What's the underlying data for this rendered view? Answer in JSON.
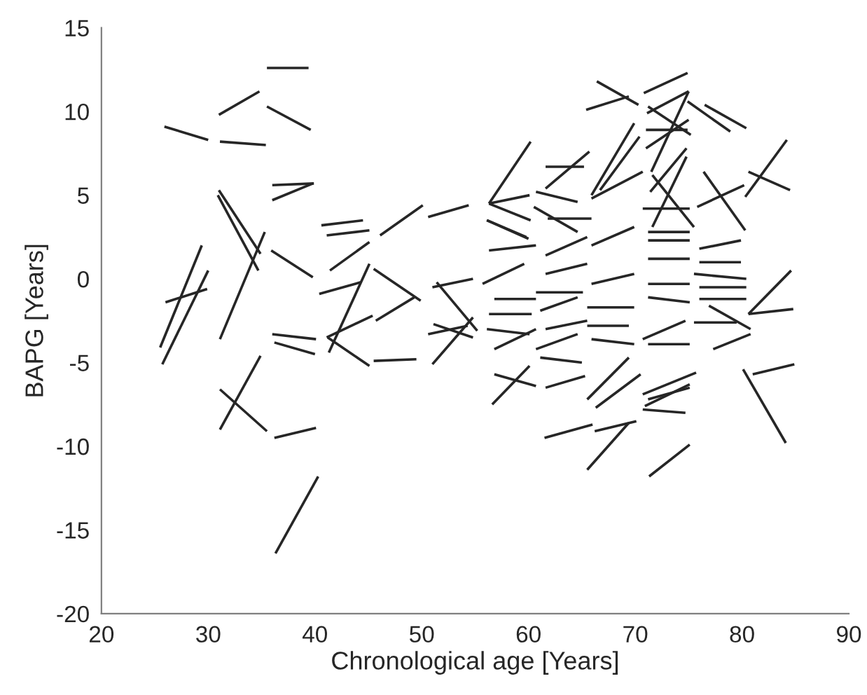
{
  "chart_data": {
    "type": "line",
    "xlabel": "Chronological age [Years]",
    "ylabel": "BAPG [Years]",
    "xlim": [
      20,
      90
    ],
    "xticks": [
      20,
      30,
      40,
      50,
      60,
      70,
      80,
      90
    ],
    "ylim": [
      -20,
      15
    ],
    "yticks": [
      -20,
      -15,
      -10,
      -5,
      0,
      5,
      10,
      15
    ],
    "grid": false,
    "legend": false,
    "marker": "none",
    "line_style": "solid",
    "series": [
      {
        "x": [
          35.5,
          39.4
        ],
        "values": [
          12.6,
          12.6
        ],
        "color": "#262626"
      },
      {
        "x": [
          31.0,
          34.8
        ],
        "values": [
          9.8,
          11.2
        ],
        "color": "#262626"
      },
      {
        "x": [
          35.5,
          39.6
        ],
        "values": [
          10.3,
          8.9
        ],
        "color": "#262626"
      },
      {
        "x": [
          25.9,
          30.0
        ],
        "values": [
          9.1,
          8.3
        ],
        "color": "#262626"
      },
      {
        "x": [
          31.1,
          35.4
        ],
        "values": [
          8.2,
          8.0
        ],
        "color": "#262626"
      },
      {
        "x": [
          36.0,
          39.9
        ],
        "values": [
          5.6,
          5.7
        ],
        "color": "#262626"
      },
      {
        "x": [
          36.0,
          39.8
        ],
        "values": [
          4.7,
          5.7
        ],
        "color": "#262626"
      },
      {
        "x": [
          31.0,
          34.9
        ],
        "values": [
          5.3,
          1.5
        ],
        "color": "#262626"
      },
      {
        "x": [
          30.9,
          34.7
        ],
        "values": [
          5.0,
          0.5
        ],
        "color": "#262626"
      },
      {
        "x": [
          31.1,
          35.3
        ],
        "values": [
          -3.6,
          2.8
        ],
        "color": "#262626"
      },
      {
        "x": [
          35.9,
          39.8
        ],
        "values": [
          1.7,
          0.1
        ],
        "color": "#262626"
      },
      {
        "x": [
          40.6,
          44.5
        ],
        "values": [
          3.2,
          3.5
        ],
        "color": "#262626"
      },
      {
        "x": [
          41.1,
          45.1
        ],
        "values": [
          2.6,
          2.9
        ],
        "color": "#262626"
      },
      {
        "x": [
          46.1,
          50.1
        ],
        "values": [
          2.6,
          4.4
        ],
        "color": "#262626"
      },
      {
        "x": [
          50.6,
          54.4
        ],
        "values": [
          3.7,
          4.4
        ],
        "color": "#262626"
      },
      {
        "x": [
          41.4,
          45.1
        ],
        "values": [
          0.5,
          2.2
        ],
        "color": "#262626"
      },
      {
        "x": [
          40.4,
          44.3
        ],
        "values": [
          -0.9,
          -0.2
        ],
        "color": "#262626"
      },
      {
        "x": [
          41.3,
          45.1
        ],
        "values": [
          -4.4,
          0.9
        ],
        "color": "#262626"
      },
      {
        "x": [
          41.1,
          45.4
        ],
        "values": [
          -3.5,
          -2.2
        ],
        "color": "#262626"
      },
      {
        "x": [
          41.2,
          45.1
        ],
        "values": [
          -3.5,
          -5.2
        ],
        "color": "#262626"
      },
      {
        "x": [
          45.5,
          49.5
        ],
        "values": [
          -4.9,
          -4.8
        ],
        "color": "#262626"
      },
      {
        "x": [
          45.5,
          49.9
        ],
        "values": [
          0.6,
          -1.3
        ],
        "color": "#262626"
      },
      {
        "x": [
          45.7,
          49.3
        ],
        "values": [
          -2.5,
          -1.1
        ],
        "color": "#262626"
      },
      {
        "x": [
          26.0,
          29.9
        ],
        "values": [
          -1.4,
          -0.6
        ],
        "color": "#262626"
      },
      {
        "x": [
          25.5,
          29.4
        ],
        "values": [
          -4.1,
          2.0
        ],
        "color": "#262626"
      },
      {
        "x": [
          25.7,
          30.0
        ],
        "values": [
          -5.1,
          0.5
        ],
        "color": "#262626"
      },
      {
        "x": [
          36.0,
          40.1
        ],
        "values": [
          -3.3,
          -3.6
        ],
        "color": "#262626"
      },
      {
        "x": [
          36.2,
          40.0
        ],
        "values": [
          -3.8,
          -4.5
        ],
        "color": "#262626"
      },
      {
        "x": [
          31.1,
          34.9
        ],
        "values": [
          -9.0,
          -4.6
        ],
        "color": "#262626"
      },
      {
        "x": [
          31.1,
          35.5
        ],
        "values": [
          -6.6,
          -9.1
        ],
        "color": "#262626"
      },
      {
        "x": [
          36.2,
          40.1
        ],
        "values": [
          -9.5,
          -8.9
        ],
        "color": "#262626"
      },
      {
        "x": [
          36.3,
          40.3
        ],
        "values": [
          -16.4,
          -11.8
        ],
        "color": "#262626"
      },
      {
        "x": [
          51.0,
          54.8
        ],
        "values": [
          -0.5,
          0.0
        ],
        "color": "#262626"
      },
      {
        "x": [
          51.4,
          55.2
        ],
        "values": [
          -0.2,
          -3.1
        ],
        "color": "#262626"
      },
      {
        "x": [
          51.0,
          54.8
        ],
        "values": [
          -5.1,
          -2.3
        ],
        "color": "#262626"
      },
      {
        "x": [
          50.6,
          54.3
        ],
        "values": [
          -3.3,
          -2.8
        ],
        "color": "#262626"
      },
      {
        "x": [
          51.1,
          54.8
        ],
        "values": [
          -2.7,
          -3.5
        ],
        "color": "#262626"
      },
      {
        "x": [
          66.4,
          70.3
        ],
        "values": [
          11.8,
          10.4
        ],
        "color": "#262626"
      },
      {
        "x": [
          65.4,
          69.4
        ],
        "values": [
          10.1,
          10.9
        ],
        "color": "#262626"
      },
      {
        "x": [
          70.8,
          74.9
        ],
        "values": [
          11.1,
          12.3
        ],
        "color": "#262626"
      },
      {
        "x": [
          71.1,
          75.0
        ],
        "values": [
          9.9,
          11.2
        ],
        "color": "#262626"
      },
      {
        "x": [
          71.2,
          75.2
        ],
        "values": [
          10.3,
          8.6
        ],
        "color": "#262626"
      },
      {
        "x": [
          74.9,
          78.9
        ],
        "values": [
          10.6,
          8.8
        ],
        "color": "#262626"
      },
      {
        "x": [
          76.5,
          80.4
        ],
        "values": [
          10.4,
          9.0
        ],
        "color": "#262626"
      },
      {
        "x": [
          71.0,
          74.9
        ],
        "values": [
          8.9,
          8.9
        ],
        "color": "#262626"
      },
      {
        "x": [
          71.0,
          75.0
        ],
        "values": [
          7.8,
          9.5
        ],
        "color": "#262626"
      },
      {
        "x": [
          71.5,
          75.0
        ],
        "values": [
          6.4,
          11.2
        ],
        "color": "#262626"
      },
      {
        "x": [
          65.9,
          69.9
        ],
        "values": [
          5.0,
          9.3
        ],
        "color": "#262626"
      },
      {
        "x": [
          66.7,
          70.4
        ],
        "values": [
          5.3,
          8.5
        ],
        "color": "#262626"
      },
      {
        "x": [
          56.3,
          60.2
        ],
        "values": [
          4.5,
          8.2
        ],
        "color": "#262626"
      },
      {
        "x": [
          61.6,
          65.2
        ],
        "values": [
          6.7,
          6.7
        ],
        "color": "#262626"
      },
      {
        "x": [
          61.6,
          65.7
        ],
        "values": [
          5.4,
          7.6
        ],
        "color": "#262626"
      },
      {
        "x": [
          80.3,
          84.2
        ],
        "values": [
          4.9,
          8.3
        ],
        "color": "#262626"
      },
      {
        "x": [
          80.6,
          84.5
        ],
        "values": [
          6.4,
          5.3
        ],
        "color": "#262626"
      },
      {
        "x": [
          76.4,
          80.3
        ],
        "values": [
          6.4,
          2.9
        ],
        "color": "#262626"
      },
      {
        "x": [
          71.4,
          74.8
        ],
        "values": [
          5.2,
          7.8
        ],
        "color": "#262626"
      },
      {
        "x": [
          71.6,
          74.8
        ],
        "values": [
          3.1,
          7.3
        ],
        "color": "#262626"
      },
      {
        "x": [
          75.8,
          80.2
        ],
        "values": [
          4.3,
          5.6
        ],
        "color": "#262626"
      },
      {
        "x": [
          56.3,
          60.1
        ],
        "values": [
          4.5,
          5.0
        ],
        "color": "#262626"
      },
      {
        "x": [
          56.3,
          60.2
        ],
        "values": [
          4.5,
          3.5
        ],
        "color": "#262626"
      },
      {
        "x": [
          60.7,
          64.6
        ],
        "values": [
          5.2,
          4.6
        ],
        "color": "#262626"
      },
      {
        "x": [
          60.5,
          64.6
        ],
        "values": [
          4.3,
          2.8
        ],
        "color": "#262626"
      },
      {
        "x": [
          56.1,
          60.0
        ],
        "values": [
          3.5,
          2.4
        ],
        "color": "#262626"
      },
      {
        "x": [
          65.9,
          70.7
        ],
        "values": [
          4.8,
          6.4
        ],
        "color": "#262626"
      },
      {
        "x": [
          70.7,
          75.1
        ],
        "values": [
          4.2,
          4.2
        ],
        "color": "#262626"
      },
      {
        "x": [
          71.2,
          75.1
        ],
        "values": [
          2.8,
          2.8
        ],
        "color": "#262626"
      },
      {
        "x": [
          61.8,
          65.9
        ],
        "values": [
          3.6,
          3.6
        ],
        "color": "#262626"
      },
      {
        "x": [
          71.6,
          75.5
        ],
        "values": [
          6.2,
          3.1
        ],
        "color": "#262626"
      },
      {
        "x": [
          56.1,
          59.8
        ],
        "values": [
          3.5,
          2.5
        ],
        "color": "#262626"
      },
      {
        "x": [
          56.3,
          60.7
        ],
        "values": [
          1.7,
          2.0
        ],
        "color": "#262626"
      },
      {
        "x": [
          55.7,
          59.6
        ],
        "values": [
          -0.3,
          0.9
        ],
        "color": "#262626"
      },
      {
        "x": [
          56.8,
          60.7
        ],
        "values": [
          -1.2,
          -1.2
        ],
        "color": "#262626"
      },
      {
        "x": [
          56.3,
          60.3
        ],
        "values": [
          -2.1,
          -2.1
        ],
        "color": "#262626"
      },
      {
        "x": [
          56.1,
          60.1
        ],
        "values": [
          -3.0,
          -3.3
        ],
        "color": "#262626"
      },
      {
        "x": [
          56.8,
          60.7
        ],
        "values": [
          -4.2,
          -3.0
        ],
        "color": "#262626"
      },
      {
        "x": [
          61.6,
          65.5
        ],
        "values": [
          1.4,
          2.5
        ],
        "color": "#262626"
      },
      {
        "x": [
          61.6,
          65.5
        ],
        "values": [
          0.3,
          0.9
        ],
        "color": "#262626"
      },
      {
        "x": [
          60.7,
          65.1
        ],
        "values": [
          -0.8,
          -0.8
        ],
        "color": "#262626"
      },
      {
        "x": [
          61.1,
          64.6
        ],
        "values": [
          -1.9,
          -1.1
        ],
        "color": "#262626"
      },
      {
        "x": [
          61.6,
          65.5
        ],
        "values": [
          -3.0,
          -2.5
        ],
        "color": "#262626"
      },
      {
        "x": [
          60.7,
          64.6
        ],
        "values": [
          -4.2,
          -3.3
        ],
        "color": "#262626"
      },
      {
        "x": [
          65.9,
          69.9
        ],
        "values": [
          2.0,
          3.1
        ],
        "color": "#262626"
      },
      {
        "x": [
          65.9,
          69.9
        ],
        "values": [
          -0.3,
          0.3
        ],
        "color": "#262626"
      },
      {
        "x": [
          65.5,
          69.9
        ],
        "values": [
          -1.7,
          -1.7
        ],
        "color": "#262626"
      },
      {
        "x": [
          65.5,
          69.4
        ],
        "values": [
          -2.8,
          -2.8
        ],
        "color": "#262626"
      },
      {
        "x": [
          65.9,
          69.9
        ],
        "values": [
          -3.6,
          -3.9
        ],
        "color": "#262626"
      },
      {
        "x": [
          71.2,
          75.1
        ],
        "values": [
          2.3,
          2.3
        ],
        "color": "#262626"
      },
      {
        "x": [
          71.2,
          75.1
        ],
        "values": [
          1.2,
          1.2
        ],
        "color": "#262626"
      },
      {
        "x": [
          71.2,
          75.1
        ],
        "values": [
          -0.3,
          -0.3
        ],
        "color": "#262626"
      },
      {
        "x": [
          71.2,
          75.1
        ],
        "values": [
          -1.1,
          -1.4
        ],
        "color": "#262626"
      },
      {
        "x": [
          70.7,
          74.7
        ],
        "values": [
          -3.6,
          -2.5
        ],
        "color": "#262626"
      },
      {
        "x": [
          71.2,
          75.1
        ],
        "values": [
          -3.9,
          -3.9
        ],
        "color": "#262626"
      },
      {
        "x": [
          76.0,
          79.9
        ],
        "values": [
          1.8,
          2.3
        ],
        "color": "#262626"
      },
      {
        "x": [
          76.0,
          79.9
        ],
        "values": [
          1.0,
          1.0
        ],
        "color": "#262626"
      },
      {
        "x": [
          75.5,
          80.4
        ],
        "values": [
          0.3,
          0.0
        ],
        "color": "#262626"
      },
      {
        "x": [
          76.0,
          80.4
        ],
        "values": [
          -0.5,
          -0.5
        ],
        "color": "#262626"
      },
      {
        "x": [
          76.0,
          80.4
        ],
        "values": [
          -1.2,
          -1.2
        ],
        "color": "#262626"
      },
      {
        "x": [
          75.5,
          79.5
        ],
        "values": [
          -2.6,
          -2.6
        ],
        "color": "#262626"
      },
      {
        "x": [
          76.9,
          80.8
        ],
        "values": [
          -1.6,
          -3.0
        ],
        "color": "#262626"
      },
      {
        "x": [
          77.3,
          80.8
        ],
        "values": [
          -4.2,
          -3.3
        ],
        "color": "#262626"
      },
      {
        "x": [
          80.6,
          84.6
        ],
        "values": [
          -2.1,
          0.5
        ],
        "color": "#262626"
      },
      {
        "x": [
          80.6,
          84.8
        ],
        "values": [
          -2.1,
          -1.8
        ],
        "color": "#262626"
      },
      {
        "x": [
          80.1,
          84.1
        ],
        "values": [
          -5.4,
          -9.8
        ],
        "color": "#262626"
      },
      {
        "x": [
          81.0,
          84.9
        ],
        "values": [
          -5.7,
          -5.1
        ],
        "color": "#262626"
      },
      {
        "x": [
          61.5,
          66.0
        ],
        "values": [
          -9.5,
          -8.7
        ],
        "color": "#262626"
      },
      {
        "x": [
          66.2,
          70.1
        ],
        "values": [
          -9.1,
          -8.5
        ],
        "color": "#262626"
      },
      {
        "x": [
          65.5,
          69.4
        ],
        "values": [
          -11.4,
          -8.6
        ],
        "color": "#262626"
      },
      {
        "x": [
          71.3,
          75.1
        ],
        "values": [
          -11.8,
          -9.9
        ],
        "color": "#262626"
      },
      {
        "x": [
          70.7,
          75.7
        ],
        "values": [
          -6.9,
          -5.6
        ],
        "color": "#262626"
      },
      {
        "x": [
          70.7,
          74.7
        ],
        "values": [
          -7.8,
          -8.0
        ],
        "color": "#262626"
      },
      {
        "x": [
          70.9,
          75.1
        ],
        "values": [
          -7.6,
          -6.3
        ],
        "color": "#262626"
      },
      {
        "x": [
          71.2,
          75.1
        ],
        "values": [
          -7.2,
          -6.5
        ],
        "color": "#262626"
      },
      {
        "x": [
          56.6,
          60.1
        ],
        "values": [
          -7.5,
          -5.2
        ],
        "color": "#262626"
      },
      {
        "x": [
          56.8,
          60.7
        ],
        "values": [
          -5.7,
          -6.4
        ],
        "color": "#262626"
      },
      {
        "x": [
          61.6,
          65.3
        ],
        "values": [
          -6.5,
          -5.8
        ],
        "color": "#262626"
      },
      {
        "x": [
          65.5,
          69.4
        ],
        "values": [
          -7.2,
          -4.7
        ],
        "color": "#262626"
      },
      {
        "x": [
          66.3,
          70.5
        ],
        "values": [
          -7.7,
          -5.7
        ],
        "color": "#262626"
      },
      {
        "x": [
          61.1,
          65.0
        ],
        "values": [
          -4.7,
          -5.0
        ],
        "color": "#262626"
      }
    ]
  }
}
